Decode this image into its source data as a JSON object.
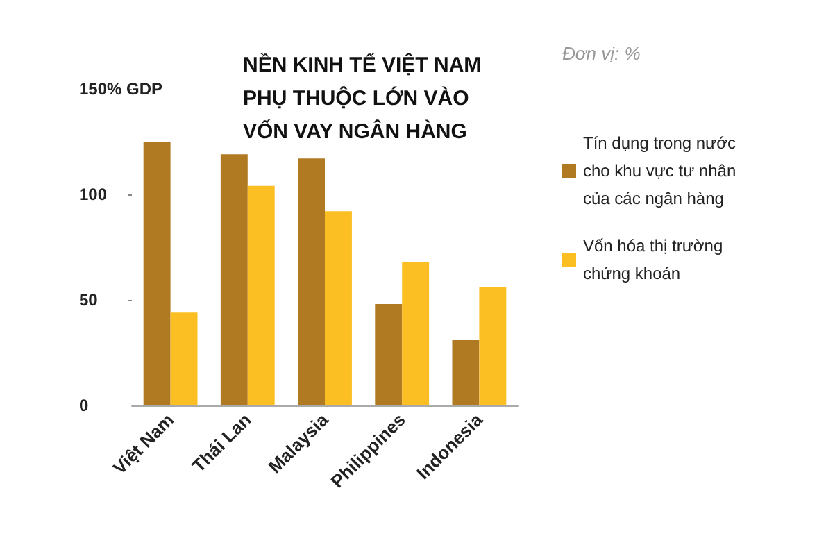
{
  "chart_data": {
    "type": "bar",
    "title": "NỀN KINH TẾ VIỆT NAM PHỤ THUỘC LỚN VÀO VỐN VAY NGÂN HÀNG",
    "annotations": [
      "Đơn vị: %"
    ],
    "categories": [
      "Việt Nam",
      "Thái Lan",
      "Malaysia",
      "Philippines",
      "Indonesia"
    ],
    "series": [
      {
        "name": "Tín dụng trong nước cho khu vực tư nhân của các ngân hàng",
        "color": "#b07a22",
        "values": [
          125,
          119,
          117,
          48,
          31
        ]
      },
      {
        "name": "Vốn hóa thị trường chứng khoán",
        "color": "#fbbf24",
        "values": [
          44,
          104,
          92,
          68,
          56
        ]
      }
    ],
    "ylim": [
      0,
      150
    ],
    "yticks": [
      0,
      50,
      100,
      {
        "value": 150,
        "label": "150% GDP"
      }
    ],
    "grid": false,
    "legend": "right"
  }
}
